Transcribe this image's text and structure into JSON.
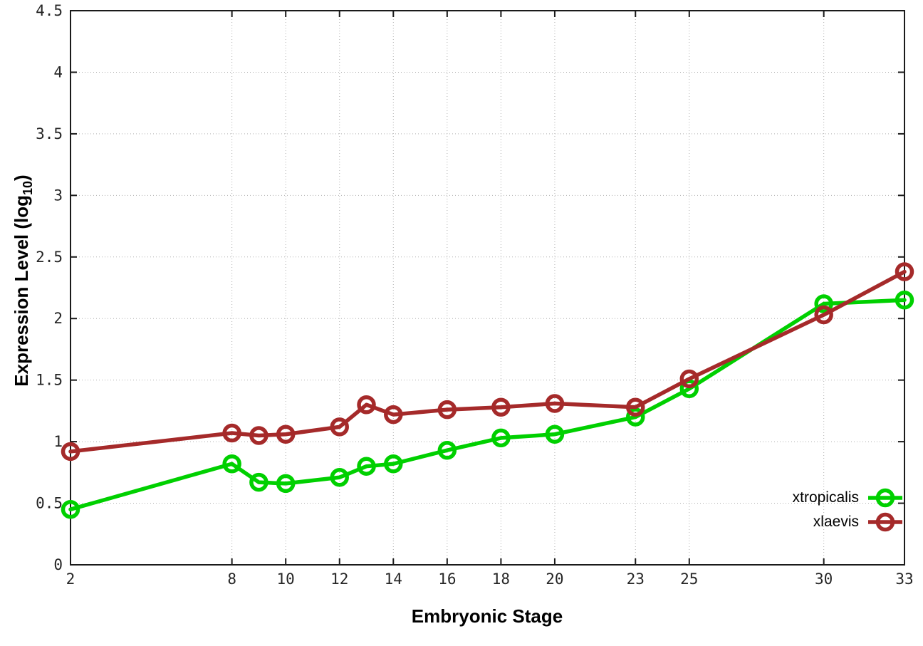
{
  "chart_data": {
    "type": "line",
    "xlabel": "Embryonic Stage",
    "ylabel": "Expression Level (log10)",
    "ylabel_parts": {
      "pre": "Expression Level (log",
      "sub": "10",
      "post": ")"
    },
    "x": [
      2,
      8,
      9,
      10,
      12,
      13,
      14,
      16,
      18,
      20,
      23,
      25,
      30,
      33
    ],
    "series": [
      {
        "name": "xtropicalis",
        "color": "#00d000",
        "values": [
          0.45,
          0.82,
          0.67,
          0.66,
          0.71,
          0.8,
          0.82,
          0.93,
          1.03,
          1.06,
          1.2,
          1.43,
          2.12,
          2.15
        ]
      },
      {
        "name": "xlaevis",
        "color": "#a52a2a",
        "values": [
          0.92,
          1.07,
          1.05,
          1.06,
          1.12,
          1.3,
          1.22,
          1.26,
          1.28,
          1.31,
          1.28,
          1.51,
          2.03,
          2.38
        ]
      }
    ],
    "xticks": [
      2,
      8,
      10,
      12,
      14,
      16,
      18,
      20,
      23,
      25,
      30,
      33
    ],
    "yticks": [
      0,
      0.5,
      1,
      1.5,
      2,
      2.5,
      3,
      3.5,
      4,
      4.5
    ],
    "xlim": [
      2,
      33
    ],
    "ylim": [
      0,
      4.5
    ],
    "grid": true,
    "legend_position": "bottom-right"
  },
  "style": {
    "axis_color": "#1a1a1a",
    "grid_color": "#b0b0b0",
    "tick_label_color": "#262626",
    "background": "#ffffff"
  }
}
